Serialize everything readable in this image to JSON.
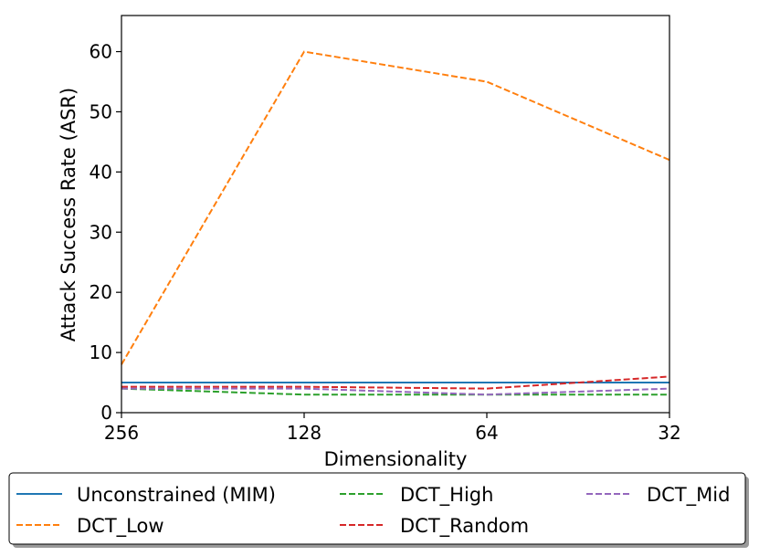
{
  "chart_data": {
    "type": "line",
    "title": "",
    "xlabel": "Dimensionality",
    "ylabel": "Attack Success Rate (ASR)",
    "categories": [
      "256",
      "128",
      "64",
      "32"
    ],
    "ylim": [
      0,
      66
    ],
    "yticks": [
      0,
      10,
      20,
      30,
      40,
      50,
      60
    ],
    "grid": false,
    "legend_position": "bottom-outside",
    "series": [
      {
        "name": "Unconstrained (MIM)",
        "color": "#1f77b4",
        "style": "solid",
        "values": [
          5,
          5,
          5,
          5
        ]
      },
      {
        "name": "DCT_Low",
        "color": "#ff7f0e",
        "style": "dashed",
        "values": [
          8,
          60,
          55,
          42
        ]
      },
      {
        "name": "DCT_High",
        "color": "#2ca02c",
        "style": "dashed",
        "values": [
          4,
          3,
          3,
          3
        ]
      },
      {
        "name": "DCT_Random",
        "color": "#d62728",
        "style": "dashed",
        "values": [
          4.3,
          4.3,
          4,
          6
        ]
      },
      {
        "name": "DCT_Mid",
        "color": "#9467bd",
        "style": "dashed",
        "values": [
          4,
          4,
          3,
          4
        ]
      }
    ]
  }
}
